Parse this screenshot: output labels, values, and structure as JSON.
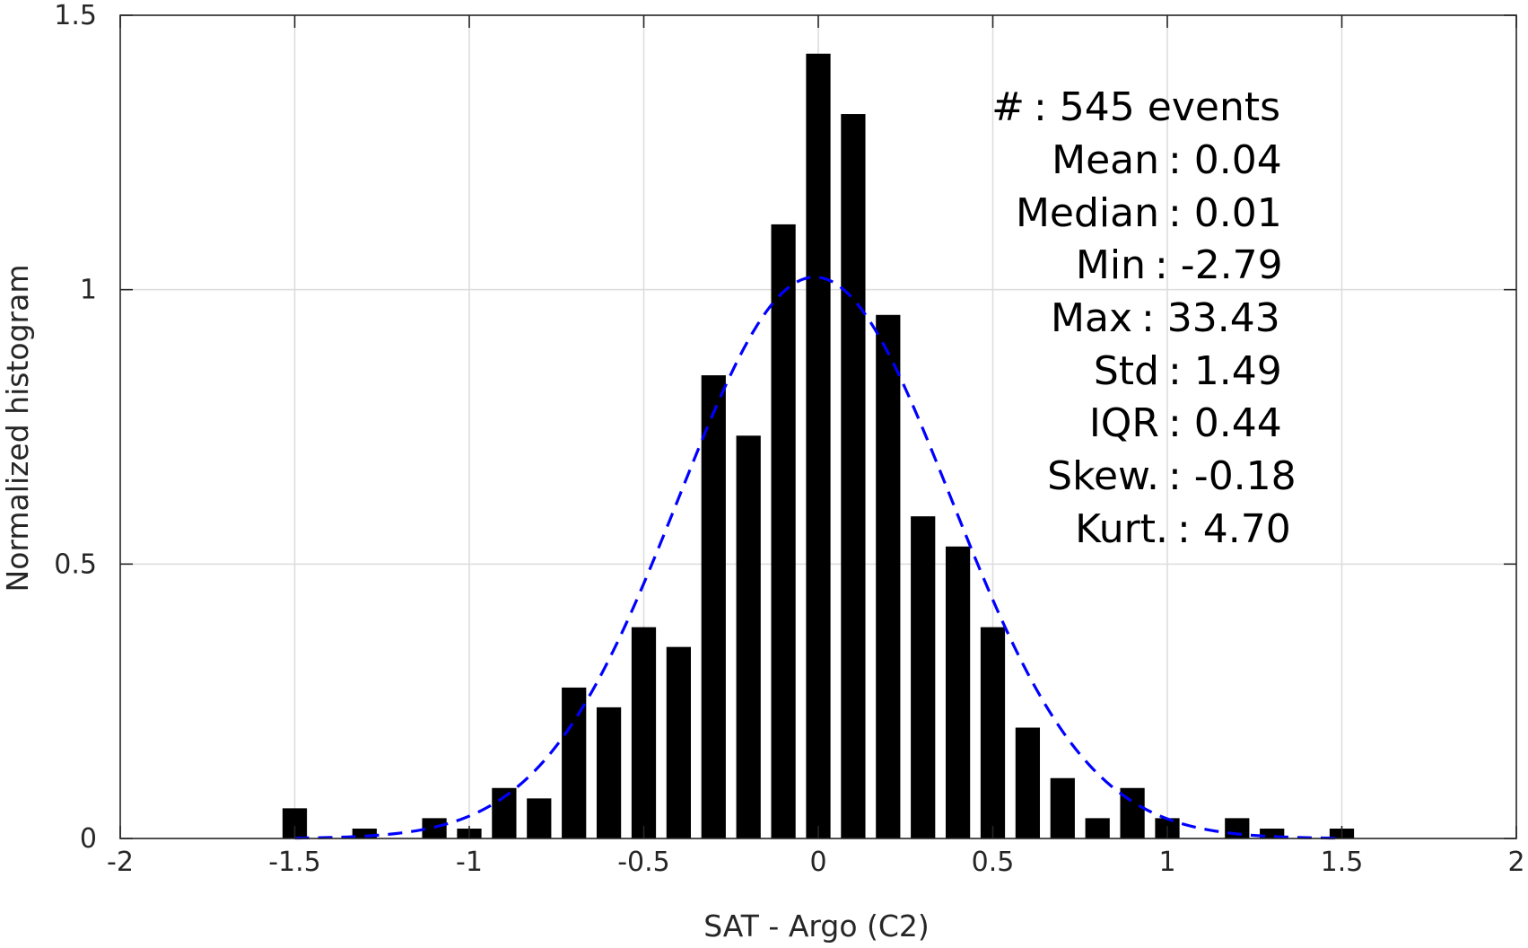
{
  "chart_data": {
    "type": "bar",
    "xlabel": "SAT - Argo (C2)",
    "ylabel": "Normalized histogram",
    "xlim": [
      -2,
      2
    ],
    "ylim": [
      0,
      1.5
    ],
    "grid": true,
    "x_ticks": [
      -2,
      -1.5,
      -1,
      -0.5,
      0,
      0.5,
      1,
      1.5,
      2
    ],
    "x_tick_labels": [
      "-2",
      "-1.5",
      "-1",
      "-0.5",
      "0",
      "0.5",
      "1",
      "1.5",
      "2"
    ],
    "y_ticks": [
      0,
      0.5,
      1,
      1.5
    ],
    "y_tick_labels": [
      "0",
      "0.5",
      "1",
      "1.5"
    ],
    "bar_width": 0.07,
    "bars": {
      "x": [
        -1.5,
        -1.3,
        -1.1,
        -1.0,
        -0.9,
        -0.8,
        -0.7,
        -0.6,
        -0.5,
        -0.4,
        -0.3,
        -0.2,
        -0.1,
        0.0,
        0.1,
        0.2,
        0.3,
        0.4,
        0.5,
        0.6,
        0.7,
        0.8,
        0.9,
        1.0,
        1.2,
        1.3,
        1.5
      ],
      "values": [
        0.055,
        0.018,
        0.037,
        0.018,
        0.092,
        0.073,
        0.275,
        0.239,
        0.385,
        0.349,
        0.844,
        0.734,
        1.119,
        1.43,
        1.32,
        0.954,
        0.587,
        0.532,
        0.385,
        0.202,
        0.11,
        0.037,
        0.092,
        0.037,
        0.037,
        0.018,
        0.018
      ],
      "color": "#000000"
    },
    "fit_curve": {
      "style": "dashed",
      "color": "#0000ff",
      "type": "gaussian",
      "mean": -0.01,
      "sigma": 0.39,
      "x_range": [
        -1.5,
        1.5
      ]
    },
    "annotations": [
      {
        "label": "#",
        "sep": " : ",
        "value": "545 events"
      },
      {
        "label": "Mean",
        "sep": " : ",
        "value": "0.04"
      },
      {
        "label": "Median",
        "sep": " : ",
        "value": "0.01"
      },
      {
        "label": "Min",
        "sep": " : ",
        "value": "-2.79"
      },
      {
        "label": "Max",
        "sep": " : ",
        "value": "33.43"
      },
      {
        "label": "Std",
        "sep": " : ",
        "value": "1.49"
      },
      {
        "label": "IQR",
        "sep": " : ",
        "value": "0.44"
      },
      {
        "label": "Skew.",
        "sep": " : ",
        "value": "-0.18"
      },
      {
        "label": "Kurt.",
        "sep": " : ",
        "value": "4.70"
      }
    ]
  }
}
